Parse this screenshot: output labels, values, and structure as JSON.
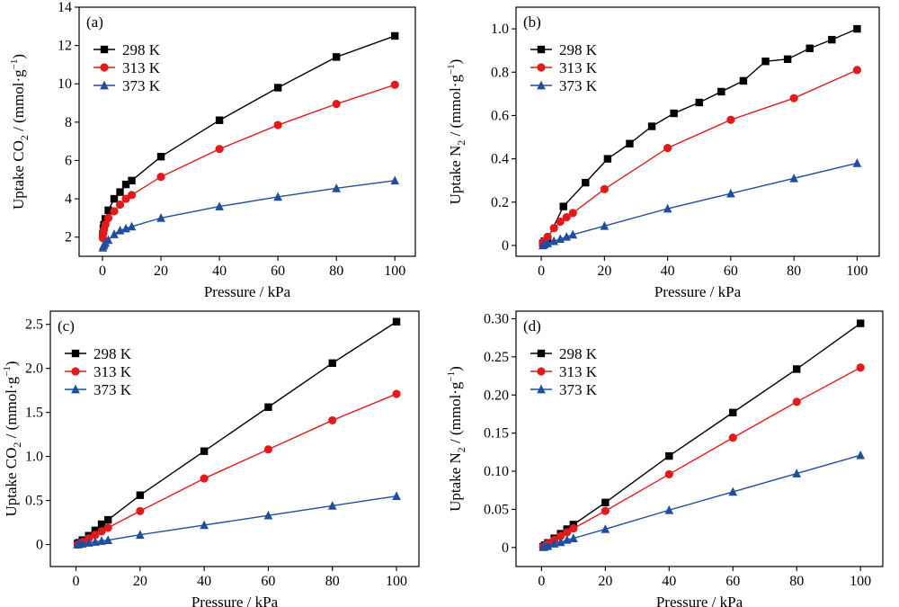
{
  "chart_data": [
    {
      "type": "line",
      "panel_label": "(a)",
      "xlabel": "Pressure / kPa",
      "ylabel_parts": [
        "Uptake CO",
        "2",
        " / (mmol·g",
        "−1",
        ")"
      ],
      "xlim": [
        -8,
        107
      ],
      "ylim": [
        1.0,
        14
      ],
      "xticks": [
        0,
        20,
        40,
        60,
        80,
        100
      ],
      "yticks": [
        2,
        4,
        6,
        8,
        10,
        12,
        14
      ],
      "xtick_labels": [
        "0",
        "20",
        "40",
        "60",
        "80",
        "100"
      ],
      "ytick_labels": [
        "2",
        "4",
        "6",
        "8",
        "10",
        "12",
        "14"
      ],
      "legend_position": "top-left",
      "series": [
        {
          "name": "298 K",
          "color": "#000000",
          "marker": "square",
          "x": [
            0.1,
            0.3,
            0.5,
            1,
            2,
            4,
            6,
            8,
            10,
            20,
            40,
            60,
            80,
            100
          ],
          "y": [
            2.15,
            2.45,
            2.65,
            2.95,
            3.4,
            4.0,
            4.35,
            4.75,
            4.95,
            6.2,
            8.1,
            9.8,
            11.4,
            12.5
          ]
        },
        {
          "name": "313 K",
          "color": "#e31a1c",
          "marker": "circle",
          "x": [
            0.1,
            0.3,
            0.5,
            1,
            2,
            4,
            6,
            8,
            10,
            20,
            40,
            60,
            80,
            100
          ],
          "y": [
            1.95,
            2.2,
            2.4,
            2.65,
            3.0,
            3.35,
            3.7,
            4.0,
            4.2,
            5.15,
            6.6,
            7.85,
            8.95,
            9.95
          ]
        },
        {
          "name": "373 K",
          "color": "#1f4e9c",
          "marker": "triangle",
          "x": [
            0.1,
            0.3,
            0.5,
            1,
            2,
            4,
            6,
            8,
            10,
            20,
            40,
            60,
            80,
            100
          ],
          "y": [
            1.45,
            1.55,
            1.6,
            1.7,
            1.85,
            2.15,
            2.35,
            2.45,
            2.55,
            3.0,
            3.6,
            4.1,
            4.55,
            4.95
          ]
        }
      ]
    },
    {
      "type": "line",
      "panel_label": "(b)",
      "xlabel": "Pressure / kPa",
      "ylabel_parts": [
        "Uptake N",
        "2",
        " / (mmol·g",
        "−1",
        ")"
      ],
      "xlim": [
        -8,
        107
      ],
      "ylim": [
        -0.05,
        1.1
      ],
      "xticks": [
        0,
        20,
        40,
        60,
        80,
        100
      ],
      "yticks": [
        0,
        0.2,
        0.4,
        0.6,
        0.8,
        1.0
      ],
      "xtick_labels": [
        "0",
        "20",
        "40",
        "60",
        "80",
        "100"
      ],
      "ytick_labels": [
        "0",
        "0.2",
        "0.4",
        "0.6",
        "0.8",
        "1.0"
      ],
      "legend_position": "top-left",
      "series": [
        {
          "name": "298 K",
          "color": "#000000",
          "marker": "square",
          "x": [
            0.5,
            1,
            2,
            7,
            14,
            21,
            28,
            35,
            42,
            50,
            57,
            64,
            71,
            78,
            85,
            92,
            100
          ],
          "y": [
            0.01,
            0.02,
            0.03,
            0.18,
            0.29,
            0.4,
            0.47,
            0.55,
            0.61,
            0.66,
            0.71,
            0.76,
            0.85,
            0.86,
            0.91,
            0.95,
            1.0
          ]
        },
        {
          "name": "313 K",
          "color": "#e31a1c",
          "marker": "circle",
          "x": [
            0.5,
            1,
            2,
            4,
            6,
            8,
            10,
            20,
            40,
            60,
            80,
            100
          ],
          "y": [
            0.01,
            0.02,
            0.04,
            0.08,
            0.11,
            0.13,
            0.15,
            0.26,
            0.45,
            0.58,
            0.68,
            0.81
          ]
        },
        {
          "name": "373 K",
          "color": "#1f4e9c",
          "marker": "triangle",
          "x": [
            0.5,
            1,
            2,
            4,
            6,
            8,
            10,
            20,
            40,
            60,
            80,
            100
          ],
          "y": [
            0.0,
            0.005,
            0.01,
            0.02,
            0.03,
            0.04,
            0.05,
            0.09,
            0.17,
            0.24,
            0.31,
            0.38
          ]
        }
      ]
    },
    {
      "type": "line",
      "panel_label": "(c)",
      "xlabel": "Pressure / kPa",
      "ylabel_parts": [
        "Uptake CO",
        "2",
        " / (mmol·g",
        "−1",
        ")"
      ],
      "xlim": [
        -8,
        107
      ],
      "ylim": [
        -0.25,
        2.65
      ],
      "xticks": [
        0,
        20,
        40,
        60,
        80,
        100
      ],
      "yticks": [
        0,
        0.5,
        1.0,
        1.5,
        2.0,
        2.5
      ],
      "xtick_labels": [
        "0",
        "20",
        "40",
        "60",
        "80",
        "100"
      ],
      "ytick_labels": [
        "0",
        "0.5",
        "1.0",
        "1.5",
        "2.0",
        "2.5"
      ],
      "legend_position": "top-left",
      "series": [
        {
          "name": "298 K",
          "color": "#000000",
          "marker": "square",
          "x": [
            0.5,
            1,
            2,
            4,
            6,
            8,
            10,
            20,
            40,
            60,
            80,
            100
          ],
          "y": [
            0.01,
            0.02,
            0.05,
            0.1,
            0.16,
            0.23,
            0.28,
            0.56,
            1.06,
            1.56,
            2.06,
            2.53
          ]
        },
        {
          "name": "313 K",
          "color": "#e31a1c",
          "marker": "circle",
          "x": [
            0.5,
            1,
            2,
            4,
            6,
            8,
            10,
            20,
            40,
            60,
            80,
            100
          ],
          "y": [
            0.0,
            0.01,
            0.03,
            0.07,
            0.11,
            0.15,
            0.19,
            0.38,
            0.75,
            1.08,
            1.41,
            1.71
          ]
        },
        {
          "name": "373 K",
          "color": "#1f4e9c",
          "marker": "triangle",
          "x": [
            0.5,
            1,
            2,
            4,
            6,
            8,
            10,
            20,
            40,
            60,
            80,
            100
          ],
          "y": [
            0.0,
            0.005,
            0.01,
            0.02,
            0.03,
            0.04,
            0.05,
            0.11,
            0.22,
            0.33,
            0.44,
            0.55
          ]
        }
      ]
    },
    {
      "type": "line",
      "panel_label": "(d)",
      "xlabel": "Pressure / kPa",
      "ylabel_parts": [
        "Uptake N",
        "2",
        " / (mmol·g",
        "−1",
        ")"
      ],
      "xlim": [
        -8,
        107
      ],
      "ylim": [
        -0.025,
        0.31
      ],
      "xticks": [
        0,
        20,
        40,
        60,
        80,
        100
      ],
      "yticks": [
        0,
        0.05,
        0.1,
        0.15,
        0.2,
        0.25,
        0.3
      ],
      "xtick_labels": [
        "0",
        "20",
        "40",
        "60",
        "80",
        "100"
      ],
      "ytick_labels": [
        "0",
        "0.05",
        "0.10",
        "0.15",
        "0.20",
        "0.25",
        "0.30"
      ],
      "legend_position": "top-left",
      "series": [
        {
          "name": "298 K",
          "color": "#000000",
          "marker": "square",
          "x": [
            0.5,
            1,
            2,
            4,
            6,
            8,
            10,
            20,
            40,
            60,
            80,
            100
          ],
          "y": [
            0.001,
            0.003,
            0.006,
            0.012,
            0.018,
            0.024,
            0.03,
            0.059,
            0.12,
            0.177,
            0.234,
            0.294
          ]
        },
        {
          "name": "313 K",
          "color": "#e31a1c",
          "marker": "circle",
          "x": [
            0.5,
            1,
            2,
            4,
            6,
            8,
            10,
            20,
            40,
            60,
            80,
            100
          ],
          "y": [
            0.001,
            0.002,
            0.005,
            0.01,
            0.015,
            0.02,
            0.025,
            0.048,
            0.096,
            0.144,
            0.191,
            0.236
          ]
        },
        {
          "name": "373 K",
          "color": "#1f4e9c",
          "marker": "triangle",
          "x": [
            0.5,
            1,
            2,
            4,
            6,
            8,
            10,
            20,
            40,
            60,
            80,
            100
          ],
          "y": [
            0.0005,
            0.001,
            0.002,
            0.005,
            0.007,
            0.01,
            0.012,
            0.024,
            0.049,
            0.073,
            0.097,
            0.121
          ]
        }
      ]
    }
  ]
}
